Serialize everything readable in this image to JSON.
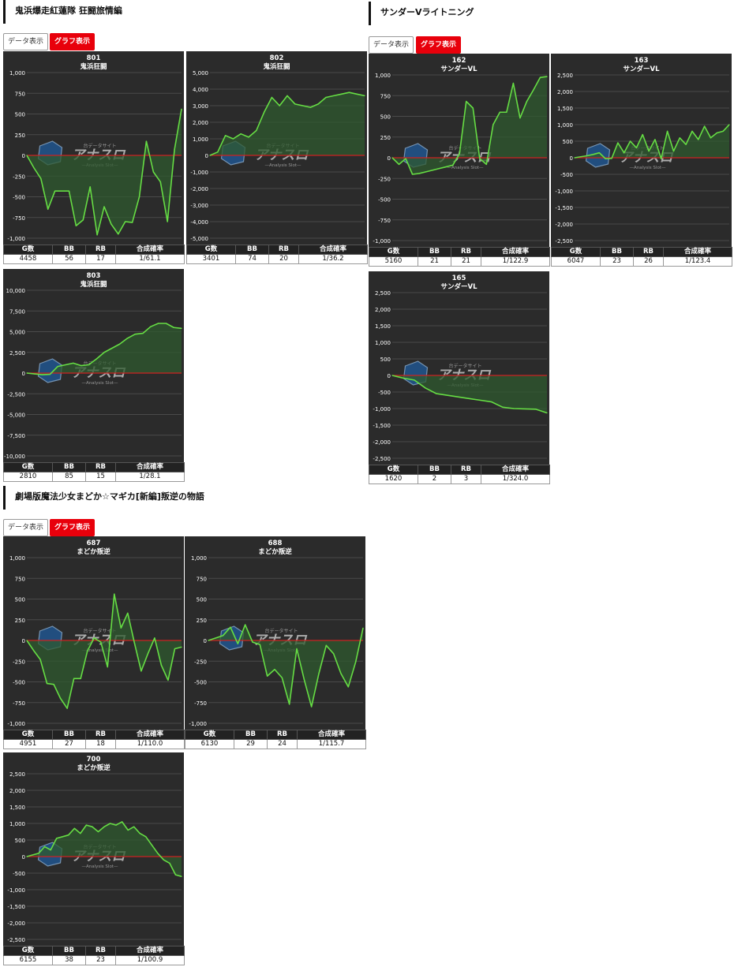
{
  "sections": [
    {
      "title": "鬼浜爆走紅蓮隊 狂闘旅情編",
      "tab_data": "データ表示",
      "tab_graph": "グラフ表示"
    },
    {
      "title": "サンダーVライトニング",
      "tab_data": "データ表示",
      "tab_graph": "グラフ表示"
    },
    {
      "title": "劇場版魔法少女まどか☆マギカ[新編]叛逆の物語",
      "tab_data": "データ表示",
      "tab_graph": "グラフ表示"
    }
  ],
  "table_headers": {
    "games": "G数",
    "bb": "BB",
    "rb": "RB",
    "rate": "合成確率"
  },
  "colors": {
    "chart_bg": "#2b2b2b",
    "line": "#66dd44",
    "fill": "#2f5a2f",
    "zero_line": "#cc2222",
    "grid": "#4a4a4a",
    "tab_active": "#e8000b"
  },
  "watermark": {
    "top": "台データサイト",
    "main": "アナスロ",
    "sub": "—Analysis Slot—"
  },
  "machines": [
    {
      "number": "801",
      "name": "鬼浜狂闘",
      "games": "4458",
      "bb": "56",
      "rb": "17",
      "rate": "1/61.1",
      "y_ticks": [
        "1,000",
        "750",
        "500",
        "250",
        "0",
        "-250",
        "-500",
        "-750",
        "-1,000"
      ],
      "ylim": [
        -1000,
        1000
      ],
      "chart_data": {
        "type": "line",
        "x": [
          0,
          1,
          2,
          3,
          4,
          5,
          6,
          7,
          8,
          9,
          10,
          11,
          12,
          13,
          14,
          15,
          16,
          17,
          18,
          19,
          20,
          21,
          22
        ],
        "y": [
          0,
          -150,
          -280,
          -650,
          -430,
          -430,
          -430,
          -850,
          -780,
          -380,
          -960,
          -620,
          -830,
          -950,
          -800,
          -810,
          -500,
          170,
          -200,
          -320,
          -800,
          70,
          560
        ]
      }
    },
    {
      "number": "802",
      "name": "鬼浜狂闘",
      "games": "3401",
      "bb": "74",
      "rb": "20",
      "rate": "1/36.2",
      "y_ticks": [
        "5,000",
        "4,000",
        "3,000",
        "2,000",
        "1,000",
        "0",
        "-1,000",
        "-2,000",
        "-3,000",
        "-4,000",
        "-5,000"
      ],
      "ylim": [
        -5000,
        5000
      ],
      "chart_data": {
        "type": "line",
        "x": [
          0,
          1,
          2,
          3,
          4,
          5,
          6,
          7,
          8,
          9,
          10,
          11,
          12,
          13,
          14,
          15,
          16,
          17,
          18,
          19,
          20
        ],
        "y": [
          0,
          200,
          1200,
          1000,
          1300,
          1100,
          1500,
          2600,
          3500,
          3000,
          3600,
          3100,
          3000,
          2900,
          3100,
          3500,
          3600,
          3700,
          3800,
          3700,
          3600
        ]
      }
    },
    {
      "number": "803",
      "name": "鬼浜狂闘",
      "games": "2810",
      "bb": "85",
      "rb": "15",
      "rate": "1/28.1",
      "y_ticks": [
        "10,000",
        "7,500",
        "5,000",
        "2,500",
        "0",
        "-2,500",
        "-5,000",
        "-7,500",
        "-10,000"
      ],
      "ylim": [
        -10000,
        10000
      ],
      "chart_data": {
        "type": "line",
        "x": [
          0,
          1,
          2,
          3,
          4,
          5,
          6,
          7,
          8,
          9,
          10,
          11,
          12,
          13,
          14,
          15,
          16,
          17,
          18,
          19,
          20
        ],
        "y": [
          0,
          -100,
          -200,
          -150,
          800,
          1000,
          1200,
          900,
          1000,
          1700,
          2500,
          3000,
          3500,
          4200,
          4700,
          4800,
          5600,
          6000,
          6000,
          5500,
          5400
        ]
      }
    },
    {
      "number": "162",
      "name": "サンダーVL",
      "games": "5160",
      "bb": "21",
      "rb": "21",
      "rate": "1/122.9",
      "y_ticks": [
        "1,000",
        "750",
        "500",
        "250",
        "0",
        "-250",
        "-500",
        "-750",
        "-1,000"
      ],
      "ylim": [
        -1000,
        1000
      ],
      "chart_data": {
        "type": "line",
        "x": [
          0,
          1,
          2,
          3,
          4,
          5,
          6,
          7,
          8,
          9,
          10,
          11,
          12,
          13,
          14,
          15,
          16,
          17,
          18,
          19,
          20,
          21,
          22,
          23
        ],
        "y": [
          0,
          -80,
          -10,
          -200,
          -190,
          -170,
          -150,
          -130,
          -110,
          -90,
          50,
          680,
          600,
          -10,
          -80,
          400,
          550,
          550,
          900,
          480,
          680,
          820,
          970,
          980
        ]
      }
    },
    {
      "number": "163",
      "name": "サンダーVL",
      "games": "6047",
      "bb": "23",
      "rb": "26",
      "rate": "1/123.4",
      "y_ticks": [
        "2,500",
        "2,000",
        "1,500",
        "1,000",
        "500",
        "0",
        "-500",
        "-1,000",
        "-1,500",
        "-2,000",
        "-2,500"
      ],
      "ylim": [
        -2500,
        2500
      ],
      "chart_data": {
        "type": "line",
        "x": [
          0,
          1,
          2,
          3,
          4,
          5,
          6,
          7,
          8,
          9,
          10,
          11,
          12,
          13,
          14,
          15,
          16,
          17,
          18,
          19,
          20,
          21,
          22,
          23,
          24,
          25
        ],
        "y": [
          0,
          30,
          60,
          100,
          150,
          -30,
          -20,
          450,
          150,
          500,
          300,
          700,
          200,
          550,
          -30,
          800,
          200,
          600,
          400,
          800,
          550,
          950,
          600,
          750,
          800,
          1000
        ]
      }
    },
    {
      "number": "165",
      "name": "サンダーVL",
      "games": "1620",
      "bb": "2",
      "rb": "3",
      "rate": "1/324.0",
      "y_ticks": [
        "2,500",
        "2,000",
        "1,500",
        "1,000",
        "500",
        "0",
        "-500",
        "-1,000",
        "-1,500",
        "-2,000",
        "-2,500"
      ],
      "ylim": [
        -2500,
        2500
      ],
      "chart_data": {
        "type": "line",
        "x": [
          0,
          1,
          2,
          3,
          4,
          5,
          6,
          7,
          8,
          9,
          10,
          11,
          12,
          13,
          14
        ],
        "y": [
          0,
          -80,
          -140,
          -380,
          -550,
          -600,
          -650,
          -700,
          -750,
          -800,
          -960,
          -1000,
          -1010,
          -1020,
          -1130
        ]
      }
    },
    {
      "number": "687",
      "name": "まどか叛逆",
      "games": "4951",
      "bb": "27",
      "rb": "18",
      "rate": "1/110.0",
      "y_ticks": [
        "1,000",
        "750",
        "500",
        "250",
        "0",
        "-250",
        "-500",
        "-750",
        "-1,000"
      ],
      "ylim": [
        -1000,
        1000
      ],
      "chart_data": {
        "type": "line",
        "x": [
          0,
          1,
          2,
          3,
          4,
          5,
          6,
          7,
          8,
          9,
          10,
          11,
          12,
          13,
          14,
          15,
          16,
          17,
          18,
          19,
          20,
          21,
          22,
          23
        ],
        "y": [
          0,
          -120,
          -230,
          -520,
          -530,
          -700,
          -820,
          -460,
          -460,
          -130,
          30,
          -20,
          -320,
          560,
          150,
          330,
          -30,
          -370,
          -160,
          30,
          -300,
          -480,
          -100,
          -80
        ]
      }
    },
    {
      "number": "688",
      "name": "まどか叛逆",
      "games": "6130",
      "bb": "29",
      "rb": "24",
      "rate": "1/115.7",
      "y_ticks": [
        "1,000",
        "750",
        "500",
        "250",
        "0",
        "-250",
        "-500",
        "-750",
        "-1,000"
      ],
      "ylim": [
        -1000,
        1000
      ],
      "chart_data": {
        "type": "line",
        "x": [
          0,
          1,
          2,
          3,
          4,
          5,
          6,
          7,
          8,
          9,
          10,
          11,
          12,
          13,
          14,
          15,
          16,
          17,
          18,
          19,
          20,
          21
        ],
        "y": [
          0,
          30,
          60,
          160,
          -40,
          190,
          -20,
          -50,
          -430,
          -350,
          -450,
          -770,
          -100,
          -470,
          -800,
          -400,
          -60,
          -160,
          -400,
          -560,
          -260,
          150
        ]
      }
    },
    {
      "number": "700",
      "name": "まどか叛逆",
      "games": "6155",
      "bb": "38",
      "rb": "23",
      "rate": "1/100.9",
      "y_ticks": [
        "2,500",
        "2,000",
        "1,500",
        "1,000",
        "500",
        "0",
        "-500",
        "-1,000",
        "-1,500",
        "-2,000",
        "-2,500"
      ],
      "ylim": [
        -2500,
        2500
      ],
      "chart_data": {
        "type": "line",
        "x": [
          0,
          1,
          2,
          3,
          4,
          5,
          6,
          7,
          8,
          9,
          10,
          11,
          12,
          13,
          14,
          15,
          16,
          17,
          18,
          19,
          20,
          21,
          22,
          23,
          24,
          25,
          26
        ],
        "y": [
          0,
          50,
          100,
          300,
          200,
          550,
          600,
          650,
          850,
          700,
          950,
          900,
          750,
          900,
          1000,
          950,
          1050,
          800,
          900,
          700,
          600,
          350,
          100,
          -100,
          -200,
          -550,
          -600
        ]
      }
    }
  ]
}
